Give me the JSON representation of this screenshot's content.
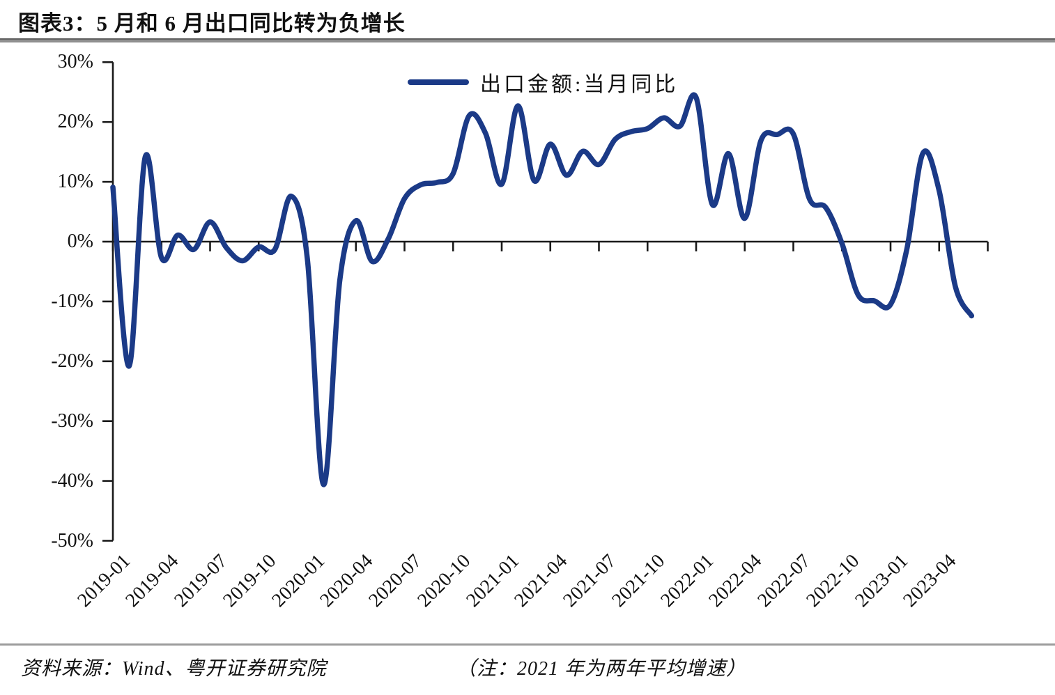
{
  "title": "图表3：5 月和 6 月出口同比转为负增长",
  "legend": {
    "label": "出口金额:当月同比"
  },
  "colors": {
    "line": "#1b3a87",
    "axis": "#1a1a1a",
    "rule": "#8f8f8f"
  },
  "y_axis": {
    "tick_labels": [
      "30%",
      "20%",
      "10%",
      "0%",
      "-10%",
      "-20%",
      "-30%",
      "-40%",
      "-50%"
    ],
    "max": 30,
    "min": -50,
    "step": 10
  },
  "x_axis": {
    "tick_labels": [
      "2019-01",
      "2019-04",
      "2019-07",
      "2019-10",
      "2020-01",
      "2020-04",
      "2020-07",
      "2020-10",
      "2021-01",
      "2021-04",
      "2021-07",
      "2021-10",
      "2022-01",
      "2022-04",
      "2022-07",
      "2022-10",
      "2023-01",
      "2023-04"
    ]
  },
  "chart_data": {
    "type": "line",
    "title": "图表3：5 月和 6 月出口同比转为负增长",
    "ylabel": "",
    "xlabel": "",
    "ylim": [
      -50,
      30
    ],
    "grid": false,
    "legend_position": "top-center",
    "note": "2021 年为两年平均增速",
    "x": [
      "2019-01",
      "2019-02",
      "2019-03",
      "2019-04",
      "2019-05",
      "2019-06",
      "2019-07",
      "2019-08",
      "2019-09",
      "2019-10",
      "2019-11",
      "2019-12",
      "2020-01",
      "2020-02",
      "2020-03",
      "2020-04",
      "2020-05",
      "2020-06",
      "2020-07",
      "2020-08",
      "2020-09",
      "2020-10",
      "2020-11",
      "2020-12",
      "2021-01",
      "2021-02",
      "2021-03",
      "2021-04",
      "2021-05",
      "2021-06",
      "2021-07",
      "2021-08",
      "2021-09",
      "2021-10",
      "2021-11",
      "2021-12",
      "2022-01",
      "2022-02",
      "2022-03",
      "2022-04",
      "2022-05",
      "2022-06",
      "2022-07",
      "2022-08",
      "2022-09",
      "2022-10",
      "2022-11",
      "2022-12",
      "2023-01",
      "2023-02",
      "2023-03",
      "2023-04",
      "2023-05",
      "2023-06"
    ],
    "series": [
      {
        "name": "出口金额:当月同比",
        "unit": "%",
        "color": "#1b3a87",
        "values": [
          9.1,
          -20.8,
          14.2,
          -2.7,
          1.1,
          -1.3,
          3.3,
          -1.0,
          -3.2,
          -0.9,
          -1.3,
          7.6,
          -2.8,
          -40.6,
          -6.6,
          3.5,
          -3.3,
          0.5,
          7.2,
          9.5,
          9.9,
          11.4,
          21.1,
          18.1,
          9.6,
          22.7,
          10.2,
          16.3,
          11.1,
          15.1,
          12.9,
          17.1,
          18.4,
          18.9,
          20.7,
          19.3,
          24.1,
          6.2,
          14.7,
          3.9,
          16.9,
          17.9,
          18.0,
          7.1,
          5.7,
          -0.3,
          -8.9,
          -9.9,
          -10.5,
          -1.3,
          14.8,
          8.5,
          -7.5,
          -12.4
        ]
      }
    ]
  },
  "footer": {
    "source": "资料来源：Wind、粤开证券研究院",
    "note": "（注：2021 年为两年平均增速）"
  }
}
